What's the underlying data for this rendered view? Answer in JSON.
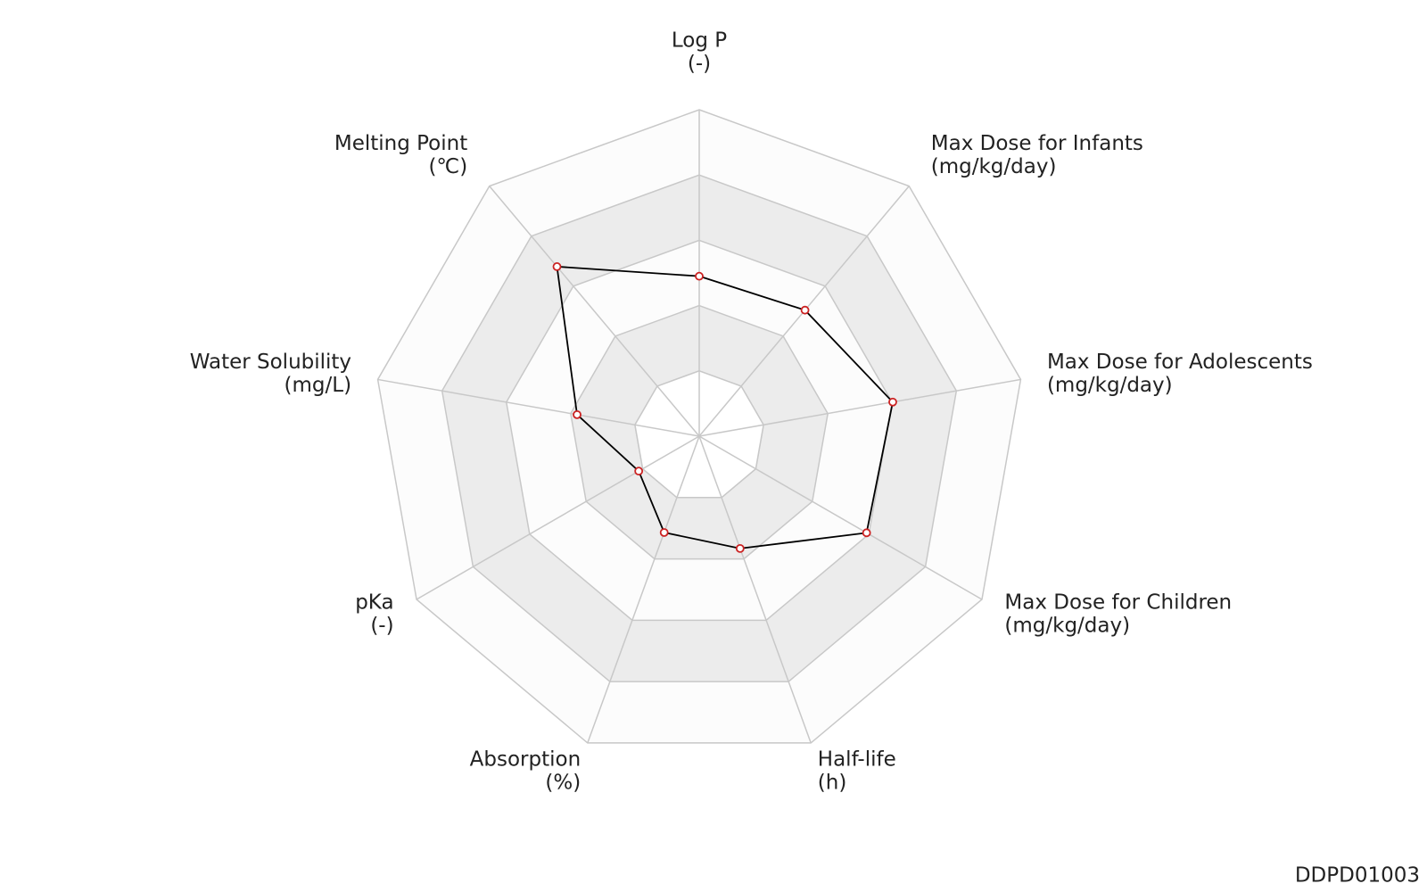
{
  "chart_data": {
    "type": "radar",
    "categories": [
      "Log P",
      "Max Dose for Infants",
      "Max Dose for Adolescents",
      "Max Dose for Children",
      "Half-life",
      "Absorption",
      "pKa",
      "Water Solubility",
      "Melting Point"
    ],
    "units": [
      "(-)",
      "(mg/kg/day)",
      "(mg/kg/day)",
      "(mg/kg/day)",
      "(h)",
      "(%)",
      "(-)",
      "(mg/L)",
      "(℃)"
    ],
    "values": [
      2.45,
      2.52,
      3.01,
      2.96,
      1.83,
      1.57,
      1.07,
      1.9,
      3.39
    ],
    "color": "#000000",
    "marker_color": "#cc2222",
    "ylim": [
      0,
      5
    ],
    "yticks": [
      1,
      2,
      3,
      4,
      5
    ],
    "band_colors": [
      "#ffffff",
      "#ececec"
    ],
    "footnote": "DDPD01003"
  }
}
